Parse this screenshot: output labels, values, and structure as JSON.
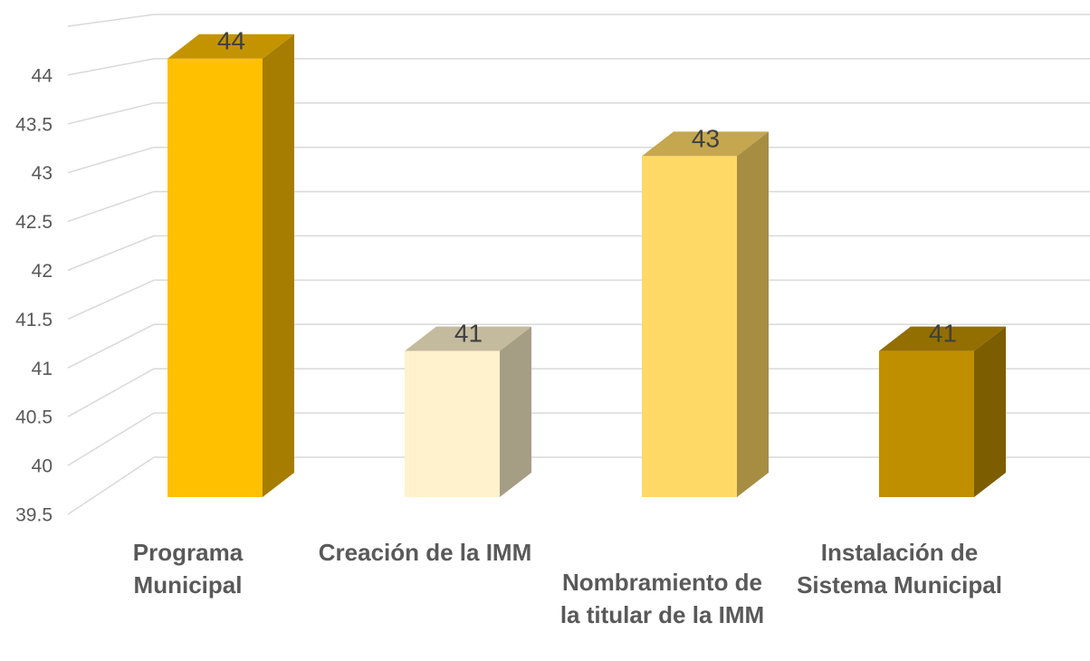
{
  "chart_data": {
    "type": "bar3d",
    "categories": [
      "Programa Municipal",
      "Creación de la IMM",
      "Nombramiento de la titular de la IMM",
      "Instalación de Sistema Municipal"
    ],
    "values": [
      44,
      41,
      43,
      41
    ],
    "colors": [
      "#FFC000",
      "#FFF2CC",
      "#FFD966",
      "#BF8F00"
    ],
    "ylim": [
      39.5,
      44.5
    ],
    "yticks": [
      39.5,
      40,
      40.5,
      41,
      41.5,
      42,
      42.5,
      43,
      43.5,
      44
    ],
    "grid": true
  }
}
